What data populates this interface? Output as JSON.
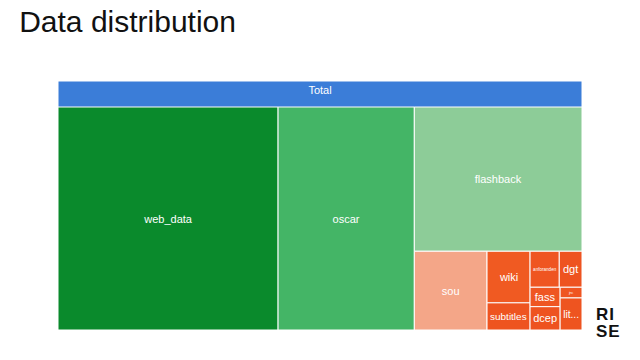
{
  "chart_data": {
    "type": "treemap",
    "title": "Data distribution",
    "root": "Total",
    "color": "#3b7dd8",
    "categories": [
      "web_data",
      "oscar",
      "flashback",
      "sou",
      "wiki",
      "subtitles",
      "anforanden",
      "dgt",
      "fass",
      "dcep",
      "jrc",
      "lit..."
    ],
    "values": [
      42.0,
      26.0,
      20.7,
      4.9,
      1.9,
      1.0,
      0.9,
      0.7,
      0.5,
      0.6,
      0.2,
      0.6
    ],
    "colors": [
      "#0a8a2c",
      "#44b566",
      "#8dcc98",
      "#f4a688",
      "#f05a22",
      "#ee5420",
      "#ef5521",
      "#ee5320",
      "#ef5622",
      "#ee5320",
      "#ef5521",
      "#ee5420"
    ]
  },
  "logo": [
    "RI",
    "SE"
  ]
}
